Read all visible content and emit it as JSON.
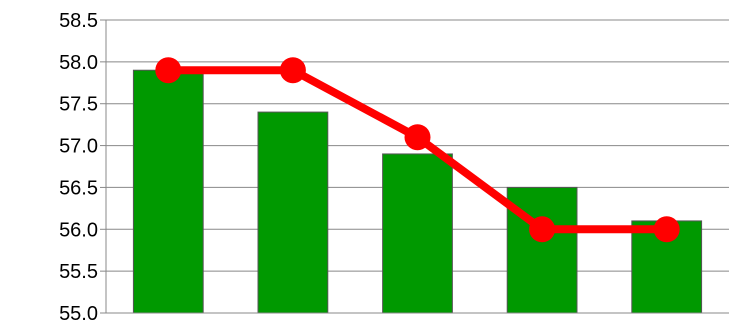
{
  "chart_data": {
    "type": "bar",
    "title": "",
    "xlabel": "",
    "ylabel": "",
    "categories": [
      "",
      "",
      "",
      "",
      ""
    ],
    "ylim": [
      55.0,
      58.5
    ],
    "yticks": [
      "55.0",
      "55.5",
      "56.0",
      "56.5",
      "57.0",
      "57.5",
      "58.0",
      "58.5"
    ],
    "grid": true,
    "legend": "none",
    "series": [
      {
        "type": "bar",
        "values": [
          57.9,
          57.4,
          56.9,
          56.5,
          56.1
        ],
        "color": "#009900"
      },
      {
        "type": "line",
        "values": [
          57.9,
          57.9,
          57.1,
          56.0,
          56.0
        ],
        "color": "#ff0000"
      }
    ]
  }
}
